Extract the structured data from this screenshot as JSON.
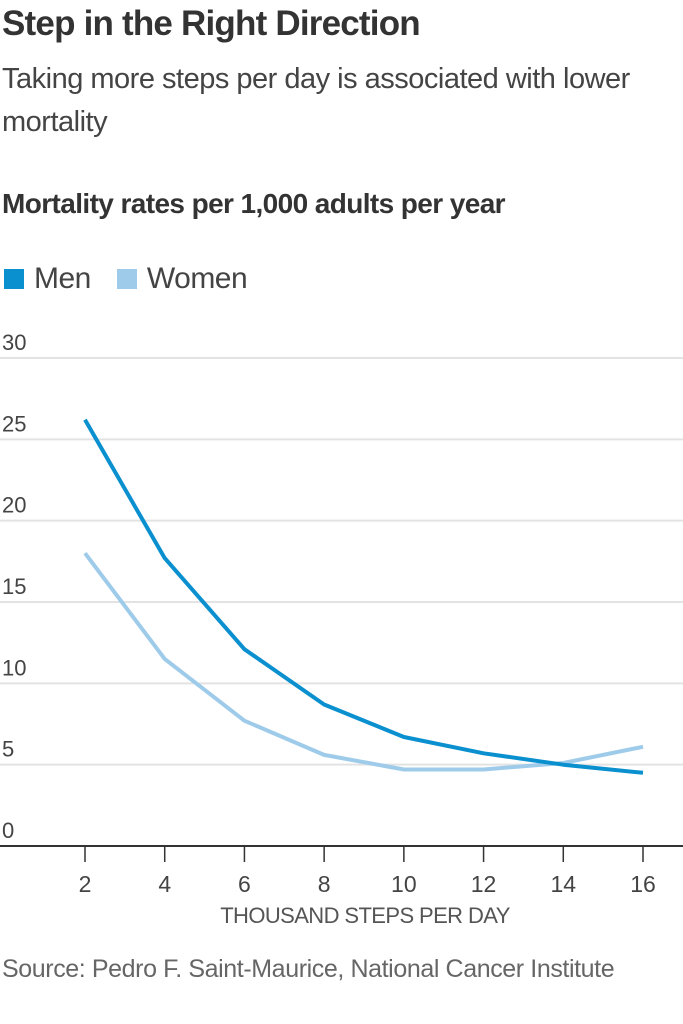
{
  "header": {
    "title": "Step in the Right Direction",
    "subtitle": "Taking more steps per day is associated with lower mortality",
    "chart_heading": "Mortality rates per 1,000 adults per year"
  },
  "legend": [
    {
      "label": "Men",
      "color": "#0a8fcf"
    },
    {
      "label": "Women",
      "color": "#9ecbea"
    }
  ],
  "footer": {
    "source": "Source: Pedro F. Saint-Maurice, National Cancer Institute"
  },
  "chart_data": {
    "type": "line",
    "title": "Mortality rates per 1,000 adults per year",
    "xlabel": "THOUSAND STEPS PER DAY",
    "ylabel": "",
    "x": [
      2,
      4,
      6,
      8,
      10,
      12,
      14,
      16
    ],
    "x_ticks": [
      "2",
      "4",
      "6",
      "8",
      "10",
      "12",
      "14",
      "16"
    ],
    "y_ticks": [
      0,
      5,
      10,
      15,
      20,
      25,
      30
    ],
    "ylim": [
      0,
      30
    ],
    "xlim": [
      0,
      17
    ],
    "grid": true,
    "legend_position": "top-left",
    "series": [
      {
        "name": "Men",
        "color": "#0a8fcf",
        "values": [
          26.2,
          17.7,
          12.1,
          8.7,
          6.7,
          5.7,
          5.0,
          4.5
        ]
      },
      {
        "name": "Women",
        "color": "#9ecbea",
        "values": [
          18.0,
          11.5,
          7.7,
          5.6,
          4.7,
          4.7,
          5.1,
          6.1
        ]
      }
    ]
  }
}
